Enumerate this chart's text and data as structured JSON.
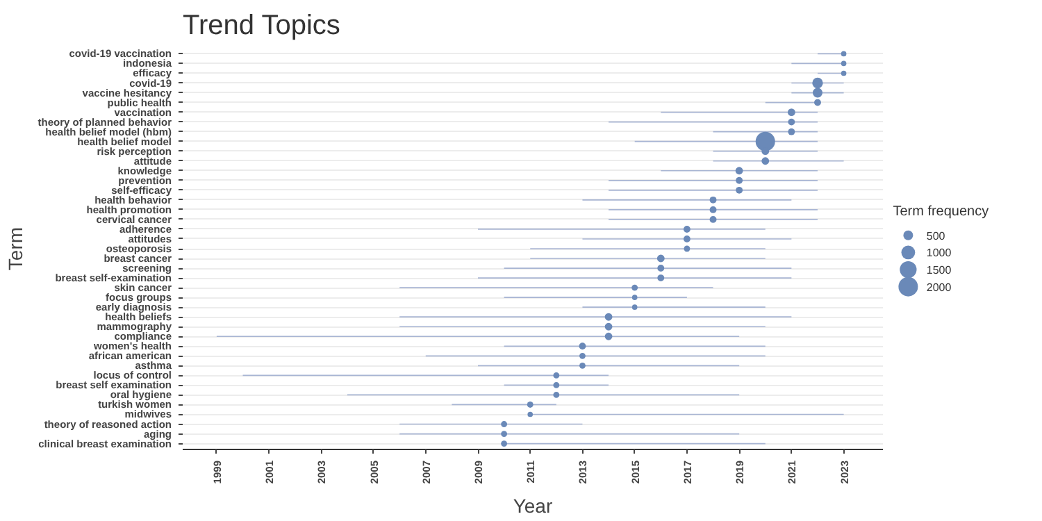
{
  "chart_data": {
    "type": "bar",
    "orientation": "horizontal",
    "title": "Trend Topics",
    "xlabel": "Year",
    "ylabel": "Term",
    "legend_title": "Term frequency",
    "grid": "y",
    "categories": [
      "covid-19 vaccination",
      "indonesia",
      "efficacy",
      "covid-19",
      "vaccine hesitancy",
      "public health",
      "vaccination",
      "theory of planned behavior",
      "health belief model (hbm)",
      "health belief model",
      "risk perception",
      "attitude",
      "knowledge",
      "prevention",
      "self-efficacy",
      "health behavior",
      "health promotion",
      "cervical cancer",
      "adherence",
      "attitudes",
      "osteoporosis",
      "breast cancer",
      "screening",
      "breast self-examination",
      "skin cancer",
      "focus groups",
      "early diagnosis",
      "health beliefs",
      "mammography",
      "compliance",
      "women's health",
      "african american",
      "asthma",
      "locus of control",
      "breast self examination",
      "oral hygiene",
      "turkish women",
      "midwives",
      "theory of reasoned action",
      "aging",
      "clinical breast examination"
    ],
    "xlim": [
      1997.7,
      2024.5
    ],
    "xticks": [
      1999,
      2001,
      2003,
      2005,
      2007,
      2009,
      2011,
      2013,
      2015,
      2017,
      2019,
      2021,
      2023
    ],
    "size_legend": [
      500,
      1000,
      1500,
      2000
    ],
    "series": [
      {
        "color": "#a8b5d3",
        "base": [
          2022,
          2021,
          2022,
          2021,
          2021,
          2020,
          2016,
          2014,
          2018,
          2015,
          2018,
          2018,
          2016,
          2014,
          2014,
          2013,
          2014,
          2014,
          2009,
          2013,
          2011,
          2011,
          2010,
          2009,
          2006,
          2010,
          2013,
          2006,
          2006,
          1999,
          2010,
          2007,
          2009,
          2000,
          2010,
          2004,
          2008,
          2011,
          2006,
          2006,
          2010
        ],
        "values": [
          1,
          2,
          1,
          2,
          2,
          2,
          6,
          8,
          4,
          7,
          4,
          5,
          6,
          8,
          8,
          8,
          8,
          8,
          11,
          8,
          9,
          9,
          11,
          12,
          12,
          7,
          7,
          15,
          14,
          20,
          10,
          13,
          10,
          14,
          4,
          15,
          4,
          12,
          7,
          13,
          10
        ]
      },
      {
        "type": "bubble",
        "color": "#6a89b8",
        "values": [
          2023,
          2023,
          2023,
          2022,
          2022,
          2022,
          2021,
          2021,
          2021,
          2020,
          2020,
          2020,
          2019,
          2019,
          2019,
          2018,
          2018,
          2018,
          2017,
          2017,
          2017,
          2016,
          2016,
          2016,
          2015,
          2015,
          2015,
          2014,
          2014,
          2014,
          2013,
          2013,
          2013,
          2012,
          2012,
          2012,
          2011,
          2011,
          2010,
          2010,
          2010
        ],
        "sizes": [
          150,
          150,
          150,
          600,
          500,
          250,
          300,
          250,
          250,
          2000,
          300,
          300,
          300,
          250,
          250,
          250,
          250,
          250,
          250,
          250,
          200,
          300,
          250,
          250,
          200,
          150,
          150,
          300,
          300,
          300,
          250,
          200,
          200,
          200,
          200,
          200,
          200,
          150,
          200,
          200,
          200
        ]
      }
    ]
  }
}
